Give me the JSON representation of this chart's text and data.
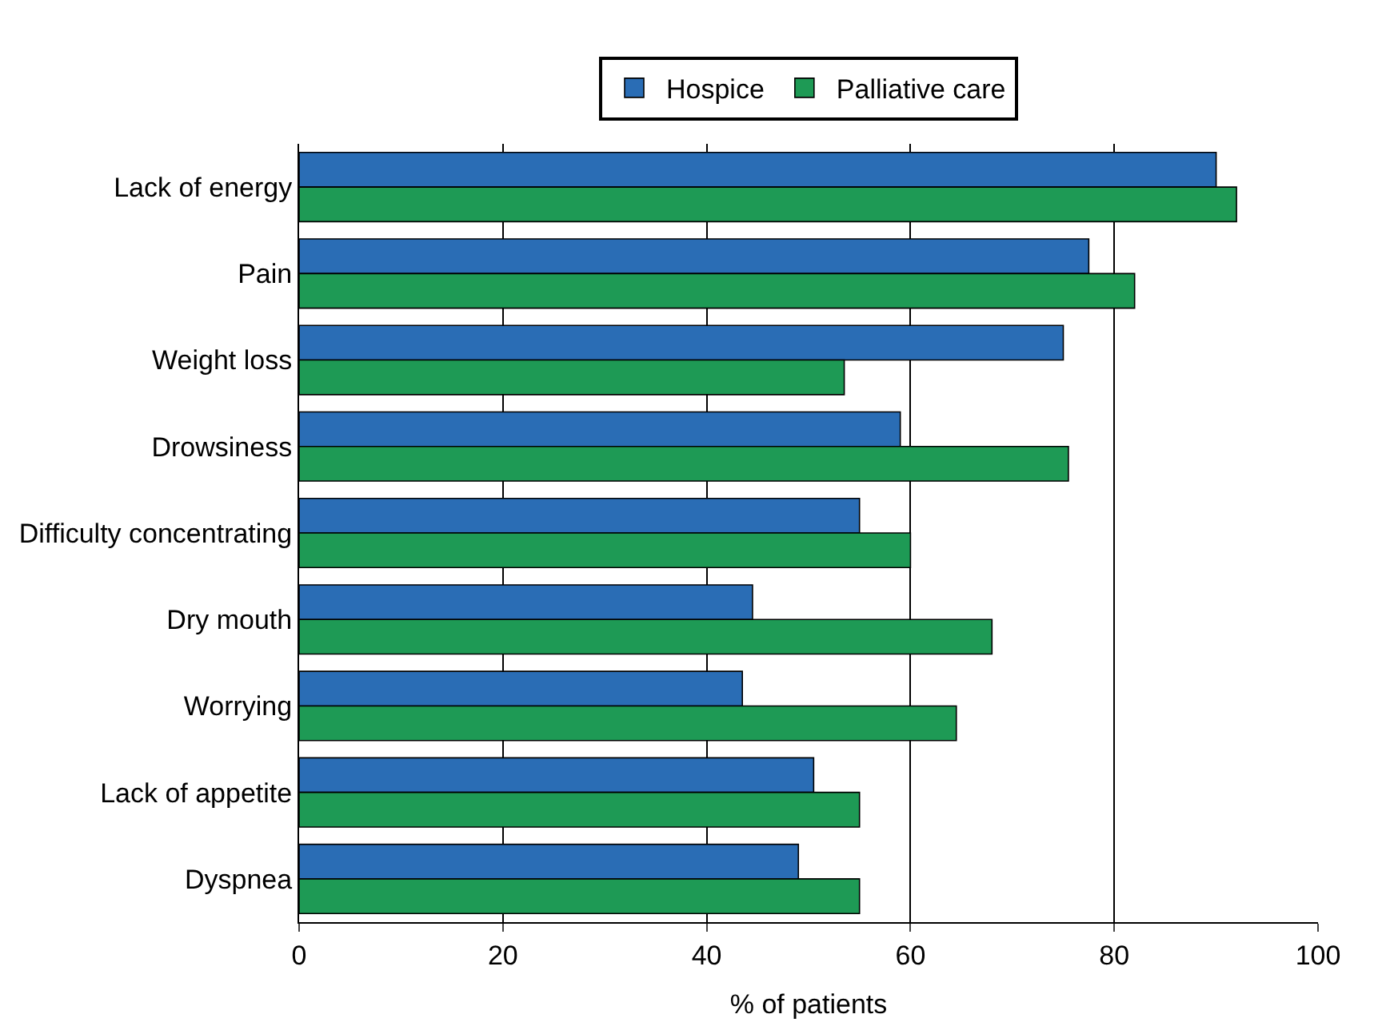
{
  "chart_data": {
    "type": "bar",
    "orientation": "horizontal",
    "xlabel": "% of patients",
    "categories": [
      "Lack of energy",
      "Pain",
      "Weight loss",
      "Drowsiness",
      "Difficulty concentrating",
      "Dry mouth",
      "Worrying",
      "Lack of appetite",
      "Dyspnea"
    ],
    "series": [
      {
        "name": "Hospice",
        "color": "#2a6db5",
        "values": [
          90,
          77.5,
          75,
          59,
          55,
          44.5,
          43.5,
          50.5,
          49
        ]
      },
      {
        "name": "Palliative care",
        "color": "#1e9a55",
        "values": [
          92,
          82,
          53.5,
          75.5,
          60,
          68,
          64.5,
          55,
          55
        ]
      }
    ],
    "xlim": [
      0,
      100
    ],
    "xticks": [
      0,
      20,
      40,
      60,
      80,
      100
    ],
    "grid": "x",
    "legend": "top"
  }
}
